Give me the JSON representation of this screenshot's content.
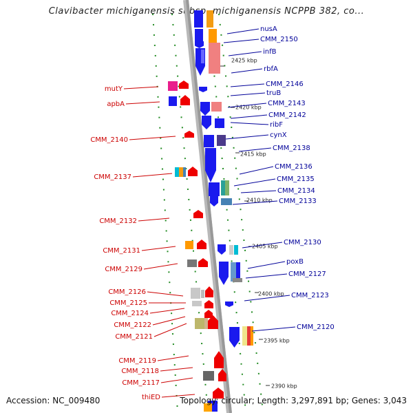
{
  "title": "Clavibacter michiganensis subsp. michiganensis NCPPB 382, co...",
  "footer": {
    "accession": "Accession: NC_009480",
    "topology": "Topology: circular; Length: 3,297,891 bp; Genes: 3,043"
  },
  "colors": {
    "forward_label": "#000099",
    "reverse_label": "#cc0000",
    "backbone": "#999999",
    "dotted_guides": "#228b22"
  },
  "ticks": [
    {
      "label": "2425 kbp"
    },
    {
      "label": "2420 kbp"
    },
    {
      "label": "2415 kbp"
    },
    {
      "label": "2410 kbp"
    },
    {
      "label": "2405 kbp"
    },
    {
      "label": "2400 kbp"
    },
    {
      "label": "2395 kbp"
    },
    {
      "label": "2390 kbp"
    }
  ],
  "forward_genes": [
    {
      "name": "nusA"
    },
    {
      "name": "CMM_2150"
    },
    {
      "name": "infB"
    },
    {
      "name": "rbfA"
    },
    {
      "name": "CMM_2146"
    },
    {
      "name": "truB"
    },
    {
      "name": "CMM_2143"
    },
    {
      "name": "CMM_2142"
    },
    {
      "name": "ribF"
    },
    {
      "name": "cynX"
    },
    {
      "name": "CMM_2138"
    },
    {
      "name": "CMM_2136"
    },
    {
      "name": "CMM_2135"
    },
    {
      "name": "CMM_2134"
    },
    {
      "name": "CMM_2133"
    },
    {
      "name": "CMM_2130"
    },
    {
      "name": "poxB"
    },
    {
      "name": "CMM_2127"
    },
    {
      "name": "CMM_2123"
    },
    {
      "name": "CMM_2120"
    }
  ],
  "reverse_genes": [
    {
      "name": "mutY"
    },
    {
      "name": "apbA"
    },
    {
      "name": "CMM_2140"
    },
    {
      "name": "CMM_2137"
    },
    {
      "name": "CMM_2132"
    },
    {
      "name": "CMM_2131"
    },
    {
      "name": "CMM_2129"
    },
    {
      "name": "CMM_2126"
    },
    {
      "name": "CMM_2125"
    },
    {
      "name": "CMM_2124"
    },
    {
      "name": "CMM_2122"
    },
    {
      "name": "CMM_2121"
    },
    {
      "name": "CMM_2119"
    },
    {
      "name": "CMM_2118"
    },
    {
      "name": "CMM_2117"
    },
    {
      "name": "thiED"
    }
  ]
}
